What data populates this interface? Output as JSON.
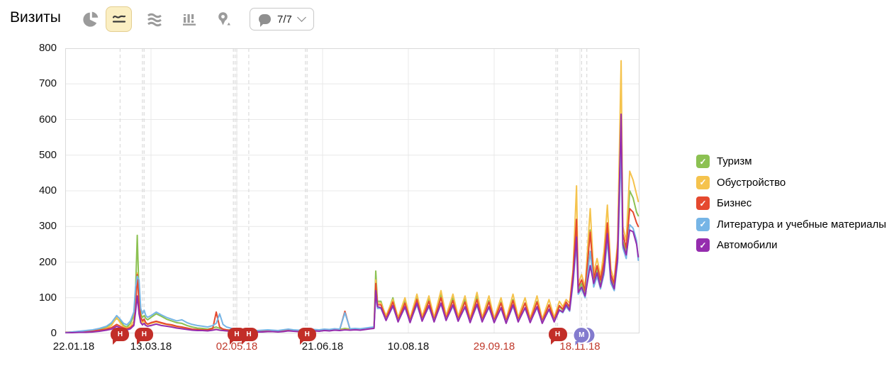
{
  "header": {
    "title": "Визиты",
    "chart_type_buttons": [
      {
        "id": "pie",
        "icon": "pie-chart-icon",
        "selected": false
      },
      {
        "id": "line",
        "icon": "line-chart-icon",
        "selected": true
      },
      {
        "id": "area",
        "icon": "area-chart-icon",
        "selected": false
      },
      {
        "id": "columns",
        "icon": "column-chart-icon",
        "selected": false
      },
      {
        "id": "map",
        "icon": "map-pin-icon",
        "selected": false
      }
    ],
    "comments_button": {
      "label": "7/7",
      "icon": "speech-bubble-icon",
      "chevron": "chevron-down-icon"
    }
  },
  "legend": {
    "items": [
      {
        "label": "Туризм",
        "color": "#8CC152"
      },
      {
        "label": "Обустройство",
        "color": "#F5C34D"
      },
      {
        "label": "Бизнес",
        "color": "#E5492F"
      },
      {
        "label": "Литература и учебные материалы",
        "color": "#76B5E6"
      },
      {
        "label": "Автомобили",
        "color": "#952DAE"
      }
    ],
    "checkmark": "✓"
  },
  "chart_data": {
    "type": "line",
    "title": "Визиты",
    "xlabel": "",
    "ylabel": "",
    "ylim": [
      0,
      800
    ],
    "y_ticks": [
      0,
      100,
      200,
      300,
      400,
      500,
      600,
      700,
      800
    ],
    "grid": true,
    "legend_position": "right",
    "x_unit": "day index from 22.01.18, daily visits",
    "x_ticks": [
      {
        "label": "22.01.18",
        "day": 0,
        "red": false
      },
      {
        "label": "13.03.18",
        "day": 50,
        "red": false
      },
      {
        "label": "02.05.18",
        "day": 100,
        "red": true
      },
      {
        "label": "21.06.18",
        "day": 150,
        "red": false
      },
      {
        "label": "10.08.18",
        "day": 200,
        "red": false
      },
      {
        "label": "29.09.18",
        "day": 250,
        "red": true
      },
      {
        "label": "18.11.18",
        "day": 300,
        "red": true
      }
    ],
    "days": [
      0,
      4,
      8,
      12,
      16,
      20,
      24,
      27,
      30,
      32,
      34,
      36,
      38,
      40,
      41,
      42,
      43,
      44,
      45,
      46,
      47,
      48,
      50,
      53,
      56,
      59,
      62,
      65,
      68,
      71,
      74,
      77,
      80,
      83,
      86,
      88,
      90,
      92,
      94,
      97,
      100,
      103,
      106,
      109,
      112,
      115,
      118,
      121,
      124,
      127,
      130,
      133,
      136,
      139,
      142,
      145,
      148,
      151,
      154,
      157,
      160,
      163,
      166,
      169,
      172,
      175,
      178,
      180,
      181,
      182,
      184,
      187,
      191,
      194,
      198,
      201,
      205,
      208,
      212,
      215,
      219,
      222,
      226,
      229,
      233,
      236,
      240,
      243,
      247,
      250,
      254,
      257,
      261,
      264,
      268,
      271,
      275,
      278,
      282,
      285,
      288,
      290,
      292,
      294,
      296,
      298,
      299,
      301,
      303,
      306,
      308,
      310,
      312,
      314,
      316,
      318,
      320,
      322,
      324,
      325,
      327,
      329,
      331,
      333,
      334
    ],
    "series": [
      {
        "name": "Туризм",
        "color": "#8CC152",
        "values": [
          2,
          3,
          5,
          4,
          6,
          10,
          18,
          28,
          42,
          35,
          22,
          18,
          28,
          50,
          120,
          275,
          110,
          55,
          45,
          50,
          42,
          38,
          45,
          55,
          48,
          40,
          35,
          30,
          28,
          22,
          18,
          15,
          14,
          12,
          15,
          18,
          14,
          12,
          10,
          9,
          8,
          6,
          7,
          6,
          5,
          6,
          8,
          7,
          6,
          8,
          10,
          9,
          8,
          10,
          12,
          10,
          9,
          11,
          10,
          12,
          11,
          14,
          12,
          13,
          12,
          14,
          16,
          18,
          175,
          90,
          90,
          45,
          100,
          40,
          95,
          38,
          105,
          42,
          98,
          40,
          110,
          45,
          100,
          42,
          95,
          38,
          105,
          40,
          92,
          38,
          88,
          35,
          95,
          40,
          85,
          38,
          90,
          35,
          80,
          40,
          75,
          65,
          85,
          70,
          160,
          300,
          120,
          140,
          110,
          290,
          150,
          180,
          140,
          190,
          300,
          160,
          130,
          220,
          540,
          260,
          230,
          400,
          380,
          340,
          330
        ]
      },
      {
        "name": "Обустройство",
        "color": "#F5C34D",
        "values": [
          2,
          3,
          4,
          5,
          5,
          8,
          14,
          22,
          45,
          30,
          18,
          15,
          20,
          35,
          80,
          170,
          75,
          40,
          30,
          35,
          28,
          25,
          28,
          32,
          28,
          25,
          22,
          18,
          15,
          12,
          10,
          9,
          8,
          8,
          10,
          12,
          9,
          8,
          7,
          6,
          5,
          4,
          5,
          4,
          4,
          5,
          6,
          5,
          5,
          6,
          8,
          7,
          6,
          8,
          9,
          8,
          7,
          9,
          8,
          10,
          9,
          11,
          10,
          11,
          10,
          12,
          14,
          15,
          150,
          85,
          85,
          50,
          95,
          45,
          100,
          42,
          110,
          48,
          105,
          45,
          120,
          50,
          110,
          48,
          105,
          42,
          115,
          45,
          105,
          42,
          100,
          40,
          110,
          45,
          100,
          42,
          105,
          40,
          95,
          45,
          90,
          75,
          95,
          85,
          180,
          414,
          140,
          165,
          130,
          350,
          170,
          210,
          160,
          230,
          360,
          180,
          150,
          260,
          765,
          300,
          260,
          455,
          430,
          390,
          370
        ]
      },
      {
        "name": "Бизнес",
        "color": "#E5492F",
        "values": [
          3,
          4,
          5,
          6,
          7,
          9,
          12,
          16,
          25,
          20,
          15,
          13,
          16,
          25,
          70,
          165,
          85,
          45,
          35,
          40,
          30,
          26,
          30,
          34,
          30,
          26,
          24,
          20,
          18,
          15,
          12,
          11,
          10,
          10,
          14,
          60,
          18,
          12,
          10,
          8,
          7,
          6,
          7,
          6,
          5,
          6,
          7,
          6,
          6,
          7,
          9,
          8,
          7,
          9,
          10,
          9,
          8,
          10,
          9,
          11,
          10,
          62,
          11,
          12,
          11,
          13,
          15,
          16,
          140,
          80,
          80,
          42,
          88,
          38,
          85,
          36,
          95,
          40,
          90,
          38,
          100,
          42,
          92,
          40,
          88,
          36,
          95,
          38,
          88,
          36,
          85,
          34,
          92,
          38,
          85,
          36,
          88,
          34,
          80,
          38,
          78,
          68,
          88,
          75,
          170,
          320,
          130,
          150,
          120,
          284,
          155,
          190,
          150,
          200,
          310,
          165,
          140,
          240,
          580,
          280,
          240,
          350,
          340,
          310,
          300
        ]
      },
      {
        "name": "Литература и учебные материалы",
        "color": "#76B5E6",
        "values": [
          2,
          4,
          6,
          8,
          10,
          14,
          20,
          30,
          50,
          40,
          28,
          24,
          35,
          60,
          130,
          160,
          150,
          70,
          55,
          65,
          50,
          45,
          50,
          60,
          52,
          45,
          40,
          35,
          38,
          30,
          25,
          22,
          20,
          18,
          22,
          28,
          55,
          25,
          18,
          14,
          12,
          10,
          11,
          9,
          8,
          9,
          10,
          9,
          8,
          10,
          12,
          10,
          9,
          11,
          12,
          11,
          10,
          12,
          11,
          13,
          12,
          58,
          13,
          14,
          13,
          15,
          17,
          18,
          110,
          70,
          70,
          38,
          75,
          34,
          72,
          32,
          80,
          36,
          75,
          34,
          82,
          38,
          76,
          36,
          72,
          32,
          78,
          34,
          72,
          32,
          70,
          30,
          76,
          34,
          70,
          32,
          72,
          30,
          66,
          34,
          64,
          58,
          75,
          62,
          140,
          250,
          110,
          125,
          100,
          230,
          130,
          160,
          125,
          165,
          260,
          140,
          120,
          200,
          520,
          240,
          210,
          305,
          295,
          260,
          205
        ]
      },
      {
        "name": "Автомобили",
        "color": "#952DAE",
        "values": [
          1,
          2,
          3,
          3,
          4,
          6,
          9,
          12,
          20,
          16,
          12,
          10,
          13,
          22,
          60,
          105,
          55,
          30,
          24,
          28,
          22,
          20,
          22,
          26,
          22,
          20,
          18,
          15,
          13,
          11,
          9,
          8,
          8,
          7,
          9,
          11,
          9,
          8,
          7,
          6,
          5,
          4,
          5,
          4,
          4,
          4,
          5,
          5,
          4,
          5,
          7,
          6,
          5,
          7,
          8,
          7,
          6,
          8,
          7,
          9,
          8,
          10,
          9,
          10,
          9,
          11,
          13,
          14,
          120,
          75,
          72,
          36,
          78,
          32,
          75,
          30,
          85,
          34,
          78,
          32,
          85,
          36,
          80,
          34,
          75,
          30,
          82,
          32,
          75,
          30,
          72,
          28,
          80,
          32,
          72,
          30,
          75,
          28,
          68,
          32,
          66,
          60,
          80,
          65,
          150,
          270,
          115,
          130,
          105,
          190,
          140,
          170,
          130,
          175,
          280,
          150,
          125,
          210,
          615,
          250,
          220,
          290,
          285,
          250,
          215
        ]
      }
    ]
  },
  "annotations": {
    "holiday_markers": {
      "label": "Н",
      "color": "#C22E28",
      "days": [
        32,
        46,
        100,
        107,
        141,
        287
      ]
    },
    "note_markers": {
      "label": "М",
      "color": "#837BCE",
      "days": [
        304,
        301
      ]
    },
    "dashed_days": [
      32,
      45,
      46,
      98,
      99,
      100,
      107,
      140,
      141,
      286,
      287,
      301,
      304
    ]
  }
}
